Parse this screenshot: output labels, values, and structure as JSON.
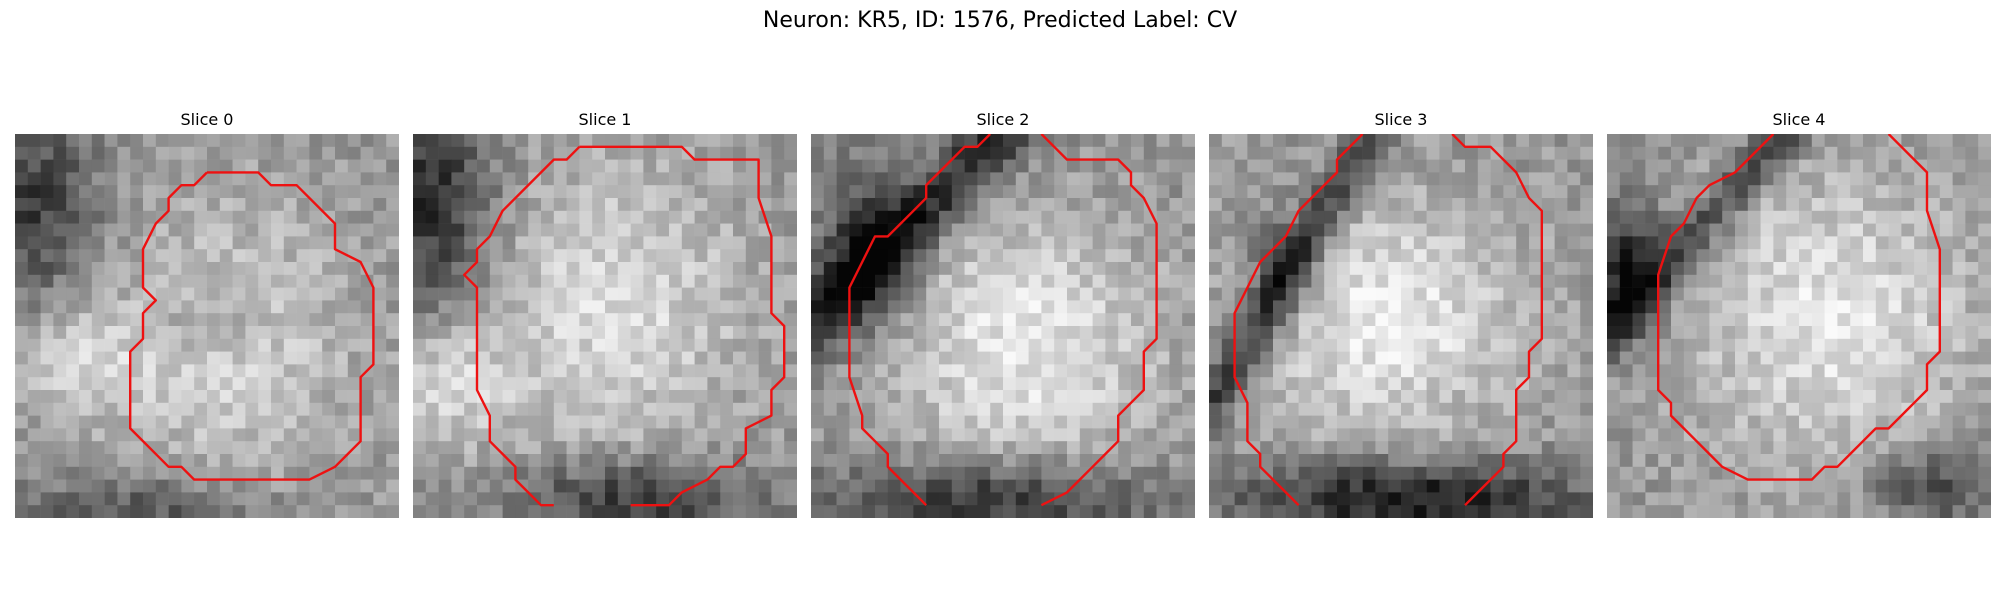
{
  "figure": {
    "title": "Neuron: KR5, ID: 1576, Predicted Label: CV",
    "contour_color": "#ee1111"
  },
  "panels": [
    {
      "title": "Slice 0"
    },
    {
      "title": "Slice 1"
    },
    {
      "title": "Slice 2"
    },
    {
      "title": "Slice 3"
    },
    {
      "title": "Slice 4"
    }
  ]
}
